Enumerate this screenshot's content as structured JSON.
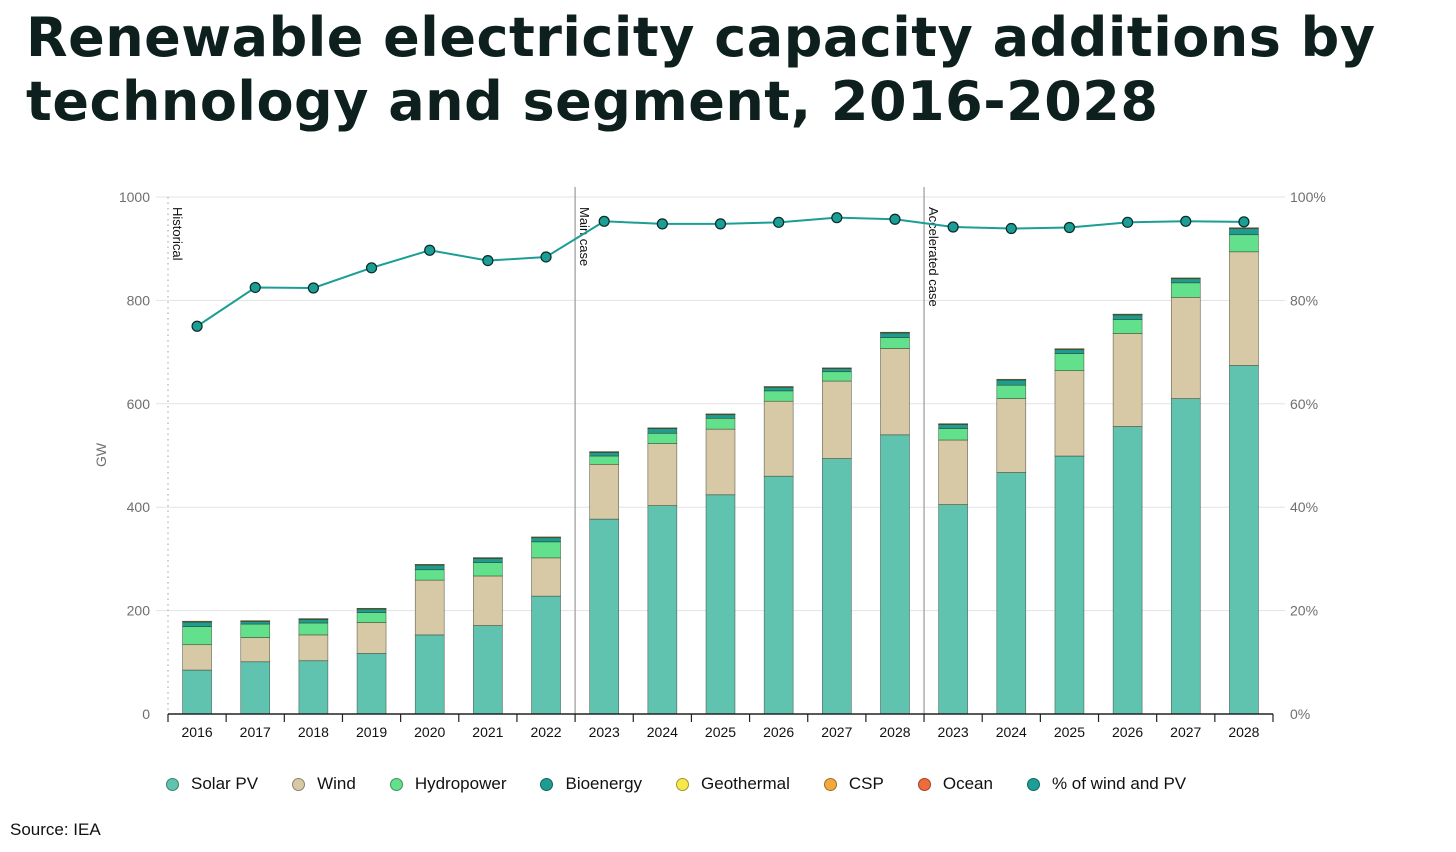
{
  "header": {
    "title": "Renewable electricity capacity additions by technology and segment, 2016-2028"
  },
  "footer": {
    "source": "Source: IEA"
  },
  "chart_data": {
    "type": "bar",
    "stacked": true,
    "title": "Renewable electricity capacity additions by technology and segment, 2016-2028",
    "ylabel": "GW",
    "ylim": [
      0,
      1000
    ],
    "yticks": [
      "0",
      "200",
      "400",
      "600",
      "800",
      "1000"
    ],
    "y2ticks": [
      "0%",
      "20%",
      "40%",
      "60%",
      "80%",
      "100%"
    ],
    "y2lim": [
      0,
      100
    ],
    "grid": true,
    "legend_position": "bottom",
    "categories": [
      "2016",
      "2017",
      "2018",
      "2019",
      "2020",
      "2021",
      "2022",
      "2023",
      "2024",
      "2025",
      "2026",
      "2027",
      "2028",
      "2023",
      "2024",
      "2025",
      "2026",
      "2027",
      "2028"
    ],
    "segments": [
      {
        "label": "Historical",
        "start_index": 0
      },
      {
        "label": "Main case",
        "start_index": 7
      },
      {
        "label": "Accelerated case",
        "start_index": 13
      }
    ],
    "series": [
      {
        "name": "Solar PV",
        "color": "#5fc3b0",
        "values": [
          85,
          101,
          103,
          117,
          153,
          171,
          228,
          377,
          403,
          424,
          460,
          494,
          540,
          405,
          467,
          499,
          556,
          610,
          674
        ]
      },
      {
        "name": "Wind",
        "color": "#d7c8a6",
        "values": [
          49,
          47,
          50,
          60,
          106,
          96,
          74,
          106,
          120,
          127,
          145,
          150,
          167,
          125,
          143,
          165,
          180,
          196,
          220
        ]
      },
      {
        "name": "Hydropower",
        "color": "#62e08b",
        "values": [
          35,
          26,
          23,
          19,
          20,
          26,
          31,
          16,
          20,
          21,
          20,
          18,
          21,
          22,
          26,
          33,
          27,
          28,
          33
        ]
      },
      {
        "name": "Bioenergy",
        "color": "#1e9c91",
        "values": [
          9,
          5,
          7,
          7,
          9,
          8,
          8,
          7,
          9,
          7,
          7,
          6,
          9,
          8,
          10,
          8,
          9,
          8,
          12
        ]
      },
      {
        "name": "Geothermal",
        "color": "#f7e84a",
        "values": [
          1,
          1,
          1,
          1,
          1,
          1,
          1,
          1,
          1,
          1,
          1,
          1,
          1,
          1,
          1,
          1,
          1,
          1,
          1
        ]
      },
      {
        "name": "CSP",
        "color": "#f3a93d",
        "values": [
          0.5,
          0.5,
          0.5,
          0.5,
          0.5,
          0.5,
          0.5,
          0.5,
          0.5,
          0.5,
          0.5,
          0.5,
          0.5,
          0.5,
          0.5,
          0.5,
          0.5,
          0.5,
          0.5
        ]
      },
      {
        "name": "Ocean",
        "color": "#ee6b3b",
        "values": [
          0,
          0,
          0,
          0,
          0,
          0,
          0,
          0,
          0,
          0,
          0,
          0,
          0,
          0,
          0,
          0,
          0,
          0,
          0
        ]
      }
    ],
    "line_series": {
      "name": "% of wind and PV",
      "color": "#1a9e95",
      "axis": "right",
      "values": [
        75,
        82.5,
        82.4,
        86.3,
        89.7,
        87.7,
        88.4,
        95.3,
        94.8,
        94.8,
        95.1,
        96,
        95.7,
        94.2,
        93.9,
        94.1,
        95.1,
        95.3,
        95.2
      ]
    }
  }
}
